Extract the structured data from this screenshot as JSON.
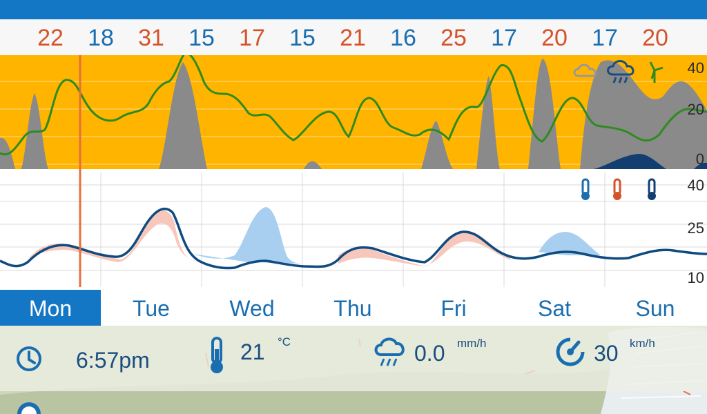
{
  "top_temps": [
    {
      "v": "22",
      "c": "hot"
    },
    {
      "v": "18",
      "c": "cool"
    },
    {
      "v": "31",
      "c": "hot"
    },
    {
      "v": "15",
      "c": "cool"
    },
    {
      "v": "17",
      "c": "hot"
    },
    {
      "v": "15",
      "c": "cool"
    },
    {
      "v": "21",
      "c": "hot"
    },
    {
      "v": "16",
      "c": "cool"
    },
    {
      "v": "25",
      "c": "hot"
    },
    {
      "v": "17",
      "c": "cool"
    },
    {
      "v": "20",
      "c": "hot"
    },
    {
      "v": "17",
      "c": "cool"
    },
    {
      "v": "20",
      "c": "hot"
    }
  ],
  "upper_axis": [
    "40",
    "20",
    "0"
  ],
  "lower_axis": [
    "40",
    "25",
    "10"
  ],
  "days": [
    "Mon",
    "Tue",
    "Wed",
    "Thu",
    "Fri",
    "Sat",
    "Sun"
  ],
  "active_day": "Mon",
  "info": {
    "time": "6:57pm",
    "temperature": "21",
    "temperature_unit": "°C",
    "rain": "0.0",
    "rain_unit": "mm/h",
    "wind": "30",
    "wind_unit": "km/h"
  },
  "icons": [
    "cloud-icon",
    "rain-cloud-icon",
    "wind-turbine-icon",
    "thermometer-low-icon",
    "thermometer-high-icon",
    "thermometer-icon",
    "clock-icon",
    "thermometer-icon",
    "rain-icon",
    "wind-gauge-icon",
    "noaa-logo-icon"
  ],
  "colors": {
    "accent": "#1477c5",
    "hot": "#d4532a",
    "cool": "#1a6eb0",
    "cloud_band": "#ffb400",
    "cloud_gray": "#888888",
    "wind_line": "#2e8b1e",
    "temp_line": "#0f4a80",
    "warm_fill": "#f7c7bc",
    "cool_fill": "#a9cff0"
  }
}
